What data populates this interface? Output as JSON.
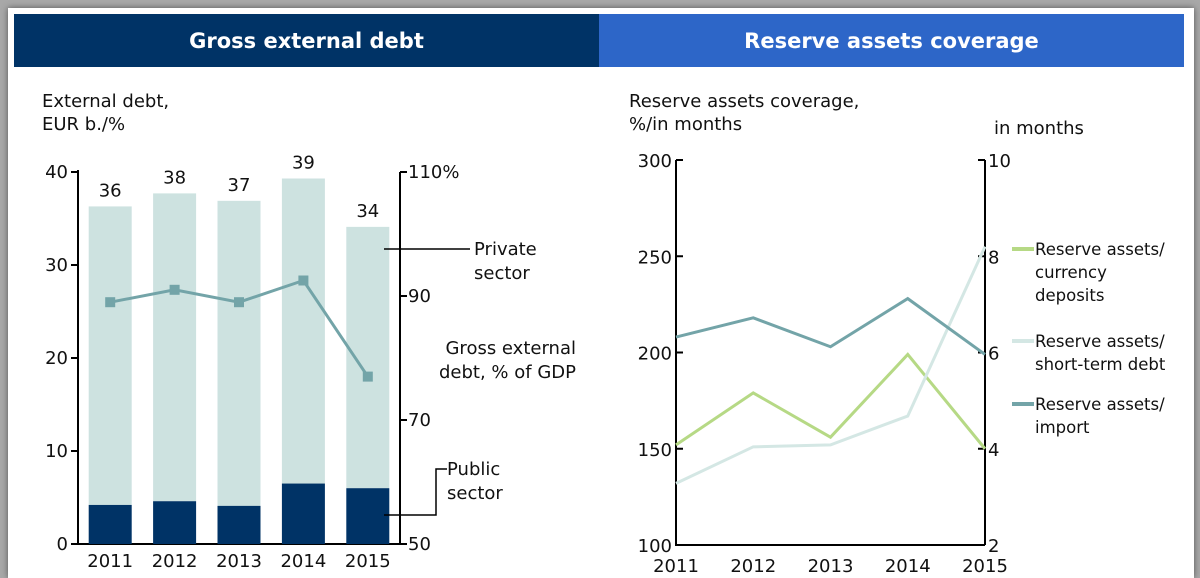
{
  "headers": {
    "left": "Gross external debt",
    "right": "Reserve assets coverage"
  },
  "chart_data": [
    {
      "type": "bar",
      "ylabel": [
        "External debt,",
        "EUR b./%"
      ],
      "y2label": [
        "Gross external",
        "debt, % of GDP"
      ],
      "categories": [
        "2011",
        "2012",
        "2013",
        "2014",
        "2015"
      ],
      "series": [
        {
          "name": "Public sector",
          "values": [
            4.2,
            4.6,
            4.1,
            6.5,
            6.0
          ],
          "color": "#003366"
        },
        {
          "name": "Private sector",
          "values": [
            32.1,
            33.1,
            32.8,
            32.8,
            28.1
          ],
          "color": "#cde2e0"
        }
      ],
      "bar_totals": [
        "36",
        "38",
        "37",
        "39",
        "34"
      ],
      "line_series": {
        "name": "Gross external debt, % of GDP",
        "axis": "right",
        "values": [
          89,
          91,
          89,
          92.5,
          77
        ],
        "color": "#73a4a8"
      },
      "ylim": [
        0,
        40
      ],
      "yticks": [
        0,
        10,
        20,
        30,
        40
      ],
      "y2lim": [
        50,
        110
      ],
      "y2ticks": [
        50,
        70,
        90,
        110
      ],
      "y2ticklabels": [
        "50",
        "70",
        "90",
        "110%"
      ],
      "annotations": {
        "private": [
          "Private",
          "sector"
        ],
        "public": [
          "Public",
          "sector"
        ]
      },
      "grid": false
    },
    {
      "type": "line",
      "ylabel": [
        "Reserve assets coverage,",
        "%/in months"
      ],
      "y2label": [
        "in months"
      ],
      "x": [
        "2011",
        "2012",
        "2013",
        "2014",
        "2015"
      ],
      "series": [
        {
          "name": [
            "Reserve assets/",
            "currency",
            "deposits"
          ],
          "axis": "left",
          "values": [
            152,
            179,
            156,
            199,
            150
          ],
          "color": "#b6d985"
        },
        {
          "name": [
            "Reserve assets/",
            "short-term debt"
          ],
          "axis": "left",
          "values": [
            132,
            151,
            152,
            167,
            255
          ],
          "color": "#d4e7e4"
        },
        {
          "name": [
            "Reserve assets/",
            "import"
          ],
          "axis": "left",
          "values": [
            208,
            218,
            203,
            228,
            199
          ],
          "color": "#73a4a8"
        }
      ],
      "ylim": [
        100,
        300
      ],
      "yticks": [
        100,
        150,
        200,
        250,
        300
      ],
      "y2lim": [
        2,
        10
      ],
      "y2ticks": [
        2,
        4,
        6,
        8,
        10
      ],
      "legend": "right",
      "grid": false
    }
  ]
}
